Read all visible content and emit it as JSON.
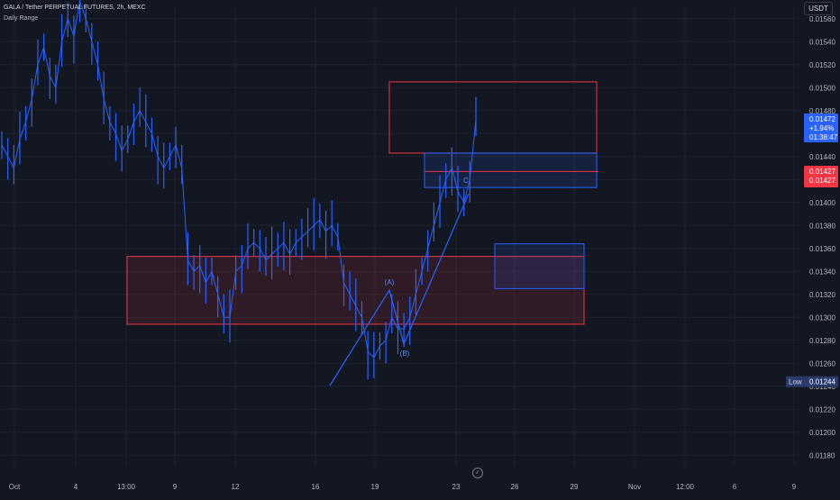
{
  "header": {
    "symbol_line": "GALA / Tether PERPETUAL FUTURES, 2h, MEXC",
    "indicator": "Daily Range"
  },
  "toolbar": {
    "currency": "USDT"
  },
  "price_labels": {
    "last_price": "0.01472",
    "change": "+1.94%",
    "countdown": "01:38:47",
    "red_tag_1": "0.01427",
    "red_tag_2": "0.01427",
    "low_label": "Low",
    "low_value": "0.01244"
  },
  "colors": {
    "background": "#131722",
    "candle": "#2962ff",
    "zone_red": "#f23645",
    "zone_blue": "#2962ff",
    "last_price_tag": "#2962ff",
    "red_tag": "#f23645",
    "low_tag": "#2a3b6b"
  },
  "chart_data": {
    "type": "line",
    "title": "GALA / Tether PERPETUAL FUTURES, 2h, MEXC",
    "xlabel": "",
    "ylabel": "",
    "y_axis_position": "right",
    "ylim": [
      0.0117,
      0.0157
    ],
    "y_ticks": [
      "0.01560",
      "0.01540",
      "0.01520",
      "0.01500",
      "0.01480",
      "0.01460",
      "0.01440",
      "0.01420",
      "0.01400",
      "0.01380",
      "0.01360",
      "0.01340",
      "0.01320",
      "0.01300",
      "0.01280",
      "0.01260",
      "0.01240",
      "0.01220",
      "0.01200",
      "0.01180"
    ],
    "x_ticks": [
      "Oct",
      "4",
      "13:00",
      "9",
      "12",
      "16",
      "19",
      "23",
      "26",
      "29",
      "Nov",
      "12:00",
      "6",
      "9"
    ],
    "series": [
      {
        "values": [
          0.0145,
          0.0144,
          0.0143,
          0.01455,
          0.0147,
          0.0149,
          0.0152,
          0.01535,
          0.0151,
          0.015,
          0.0154,
          0.0156,
          0.01545,
          0.01575,
          0.0156,
          0.0154,
          0.0152,
          0.0149,
          0.0147,
          0.0146,
          0.01445,
          0.01455,
          0.0147,
          0.0148,
          0.0147,
          0.0146,
          0.0144,
          0.0143,
          0.0144,
          0.0145,
          0.0143,
          0.0135,
          0.0134,
          0.01345,
          0.0133,
          0.0134,
          0.0132,
          0.013,
          0.013,
          0.0134,
          0.01345,
          0.0136,
          0.01365,
          0.0136,
          0.0135,
          0.01355,
          0.0136,
          0.01365,
          0.01355,
          0.01365,
          0.0137,
          0.01375,
          0.0138,
          0.01385,
          0.01375,
          0.0138,
          0.0137,
          0.0133,
          0.0132,
          0.0131,
          0.013,
          0.0127,
          0.01265,
          0.01275,
          0.0128,
          0.013,
          0.0129,
          0.0129,
          0.013,
          0.0132,
          0.0134,
          0.0136,
          0.0138,
          0.014,
          0.0142,
          0.0143,
          0.0141,
          0.014,
          0.0142,
          0.01472
        ]
      }
    ],
    "zones": [
      {
        "label": "",
        "color": "red",
        "y_top": 0.01353,
        "y_bottom": 0.01294,
        "x_start": "7",
        "x_end": "29"
      },
      {
        "label": "",
        "color": "red",
        "y_top": 0.01505,
        "y_bottom": 0.01443,
        "x_start": "22",
        "x_end": "30"
      },
      {
        "label": "",
        "color": "blue",
        "y_top": 0.01443,
        "y_bottom": 0.01413,
        "x_start": "21",
        "x_end": "30"
      },
      {
        "label": "",
        "color": "blue",
        "y_top": 0.01364,
        "y_bottom": 0.01325,
        "x_start": "25",
        "x_end": "29"
      }
    ],
    "annotations": [
      {
        "text": "(A)",
        "value": 0.01325
      },
      {
        "text": "(B)",
        "value": 0.01282
      },
      {
        "text": "C",
        "value": 0.0142
      }
    ],
    "low": 0.01244,
    "last": 0.01472
  }
}
